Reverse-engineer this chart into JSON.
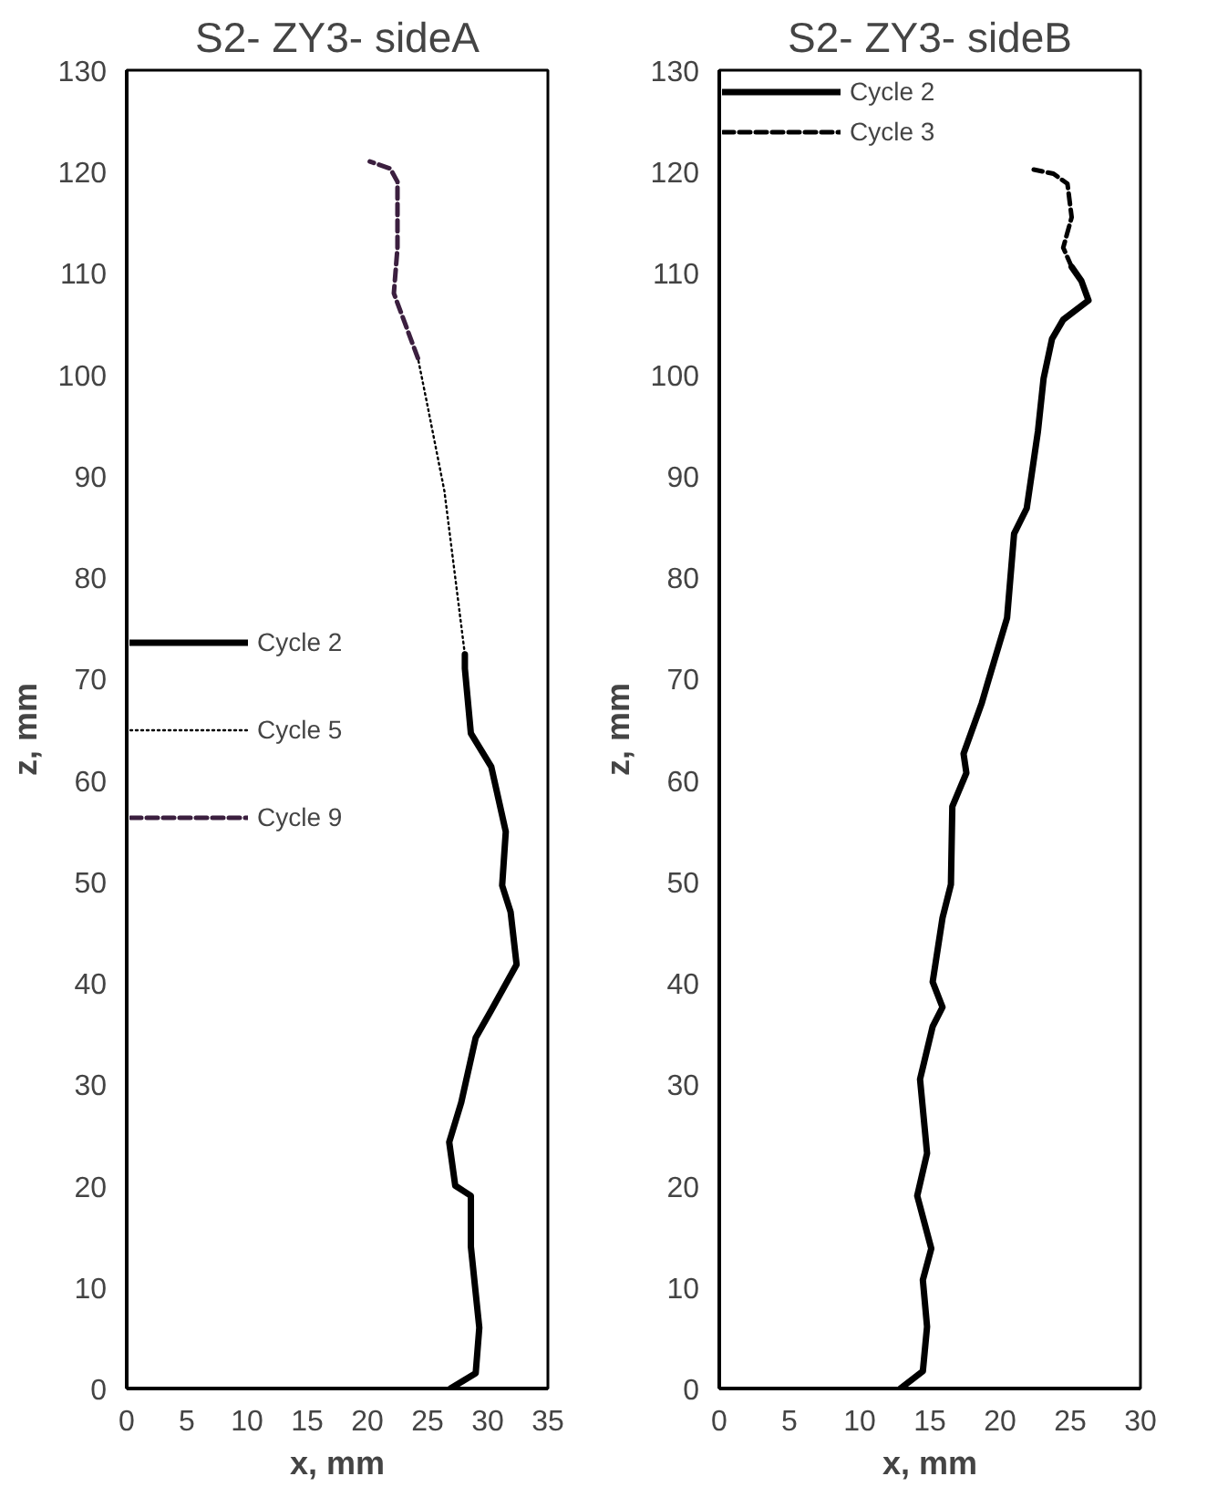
{
  "chart_data": [
    {
      "type": "line",
      "title": "S2- ZY3- sideA",
      "xlabel": "x, mm",
      "ylabel": "z, mm",
      "xlim": [
        0,
        35
      ],
      "ylim": [
        0,
        130
      ],
      "xticks": [
        0,
        5,
        10,
        15,
        20,
        25,
        30,
        35
      ],
      "yticks": [
        0,
        10,
        20,
        30,
        40,
        50,
        60,
        70,
        80,
        90,
        100,
        110,
        120,
        130
      ],
      "grid": false,
      "legend": "left",
      "marker": "none",
      "series": [
        {
          "name": "Cycle 2",
          "color": "#000000",
          "line_style": "solid",
          "x": [
            26.9,
            29.0,
            29.3,
            28.6,
            28.6,
            27.3,
            26.8,
            27.8,
            29.0,
            30.3,
            32.4,
            31.9,
            31.2,
            31.5,
            30.3,
            28.6,
            28.1,
            28.1
          ],
          "values": [
            0,
            1.5,
            6,
            14,
            19,
            20,
            24.3,
            28.2,
            34.6,
            37.3,
            41.8,
            47,
            49.6,
            54.9,
            61.3,
            64.6,
            71,
            72.4
          ]
        },
        {
          "name": "Cycle 5",
          "color": "#000000",
          "line_style": "dotted",
          "x": [
            28.1,
            26.4,
            25.0,
            24.2
          ],
          "values": [
            72.4,
            88.5,
            96.9,
            101.6
          ]
        },
        {
          "name": "Cycle 9",
          "color": "#3b1f3f",
          "line_style": "dashed",
          "x": [
            24.2,
            22.2,
            22.5,
            22.5,
            21.9,
            20.2
          ],
          "values": [
            101.6,
            108,
            112.5,
            119,
            120.3,
            121
          ]
        }
      ]
    },
    {
      "type": "line",
      "title": "S2- ZY3- sideB",
      "xlabel": "x, mm",
      "ylabel": "z, mm",
      "xlim": [
        0,
        30
      ],
      "ylim": [
        0,
        130
      ],
      "xticks": [
        0,
        5,
        10,
        15,
        20,
        25,
        30
      ],
      "yticks": [
        0,
        10,
        20,
        30,
        40,
        50,
        60,
        70,
        80,
        90,
        100,
        110,
        120,
        130
      ],
      "grid": false,
      "legend": "top left",
      "marker": "none",
      "series": [
        {
          "name": "Cycle 2",
          "color": "#000000",
          "line_style": "solid",
          "x": [
            12.9,
            14.5,
            14.8,
            14.5,
            15.1,
            14.1,
            14.8,
            14.3,
            15.2,
            15.9,
            15.2,
            15.9,
            16.5,
            16.6,
            17.6,
            17.4,
            18.7,
            19.1,
            20.5,
            21.0,
            21.9,
            22.7,
            23.1,
            23.7,
            24.5,
            26.3,
            25.8,
            25.1
          ],
          "values": [
            0,
            1.7,
            6.1,
            10.7,
            13.8,
            19,
            23.2,
            30.5,
            35.7,
            37.6,
            40.1,
            46.4,
            49.7,
            57.4,
            60.7,
            62.6,
            67.6,
            69.5,
            76,
            84.3,
            86.8,
            94.4,
            99.6,
            103.5,
            105.4,
            107.3,
            109.2,
            110.6
          ]
        },
        {
          "name": "Cycle 3",
          "color": "#000000",
          "line_style": "dashed",
          "x": [
            25.1,
            24.5,
            25.1,
            24.8,
            23.8,
            22.4
          ],
          "values": [
            110.6,
            112.5,
            115.5,
            118.8,
            119.8,
            120.2
          ]
        }
      ]
    }
  ]
}
